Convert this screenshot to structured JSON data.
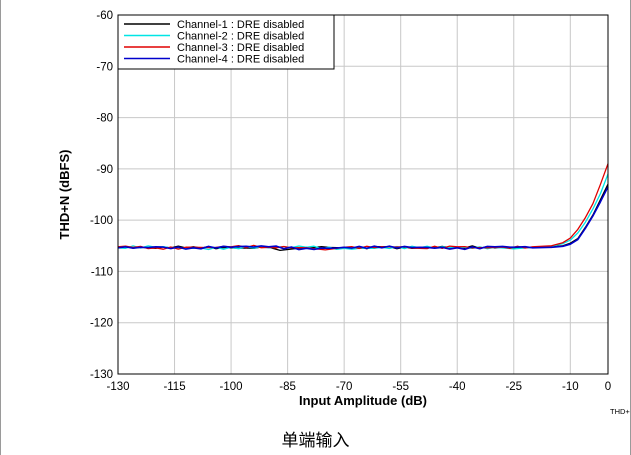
{
  "chart_data": {
    "type": "line",
    "xlabel": "Input Amplitude (dB)",
    "ylabel": "THD+N (dBFS)",
    "xlim": [
      -130,
      0
    ],
    "ylim": [
      -130,
      -60
    ],
    "xticks": [
      -130,
      -115,
      -100,
      -85,
      -70,
      -55,
      -40,
      -25,
      -10,
      0
    ],
    "yticks": [
      -60,
      -70,
      -80,
      -90,
      -100,
      -110,
      -120,
      -130
    ],
    "grid": true,
    "legend_position": "top-left",
    "series": [
      {
        "name": "Channel-1 : DRE disabled",
        "color": "#000000",
        "x": [
          -130,
          -120,
          -110,
          -100,
          -90,
          -87,
          -80,
          -70,
          -60,
          -50,
          -40,
          -30,
          -20,
          -15,
          -12,
          -10,
          -8,
          -6,
          -4,
          -2,
          0
        ],
        "y": [
          -105.3,
          -105.5,
          -105.2,
          -105.4,
          -105.3,
          -105.9,
          -105.3,
          -105.4,
          -105.2,
          -105.4,
          -105.3,
          -105.4,
          -105.3,
          -105.2,
          -105.0,
          -104.5,
          -103.6,
          -101.4,
          -99.0,
          -96.0,
          -93.0
        ]
      },
      {
        "name": "Channel-2 : DRE disabled",
        "color": "#00e5e5",
        "x": [
          -130,
          -120,
          -110,
          -100,
          -90,
          -80,
          -70,
          -60,
          -50,
          -40,
          -30,
          -25,
          -20,
          -15,
          -12,
          -10,
          -8,
          -6,
          -4,
          -2,
          0
        ],
        "y": [
          -105.4,
          -105.3,
          -105.5,
          -105.3,
          -105.4,
          -105.3,
          -105.5,
          -105.3,
          -105.4,
          -105.4,
          -105.3,
          -105.6,
          -105.3,
          -105.1,
          -104.6,
          -103.9,
          -102.5,
          -100.4,
          -97.8,
          -94.8,
          -91.0
        ]
      },
      {
        "name": "Channel-3 : DRE disabled",
        "color": "#e00000",
        "x": [
          -130,
          -120,
          -110,
          -100,
          -90,
          -80,
          -75,
          -70,
          -60,
          -50,
          -40,
          -30,
          -20,
          -15,
          -12,
          -10,
          -8,
          -6,
          -4,
          -2,
          0
        ],
        "y": [
          -105.2,
          -105.4,
          -105.3,
          -105.2,
          -105.3,
          -105.4,
          -105.8,
          -105.3,
          -105.2,
          -105.5,
          -105.2,
          -105.3,
          -105.2,
          -105.0,
          -104.4,
          -103.5,
          -101.8,
          -99.5,
          -96.8,
          -93.0,
          -89.0
        ]
      },
      {
        "name": "Channel-4 : DRE disabled",
        "color": "#0000cc",
        "x": [
          -130,
          -120,
          -110,
          -100,
          -90,
          -80,
          -70,
          -60,
          -50,
          -40,
          -30,
          -20,
          -15,
          -12,
          -10,
          -8,
          -6,
          -4,
          -2,
          0
        ],
        "y": [
          -105.4,
          -105.2,
          -105.4,
          -105.3,
          -105.2,
          -105.5,
          -105.3,
          -105.4,
          -105.3,
          -105.4,
          -105.2,
          -105.4,
          -105.3,
          -105.1,
          -104.7,
          -103.8,
          -101.6,
          -99.2,
          -96.4,
          -93.5
        ]
      }
    ]
  },
  "figure_tag": "THD+",
  "caption": "单端输入"
}
